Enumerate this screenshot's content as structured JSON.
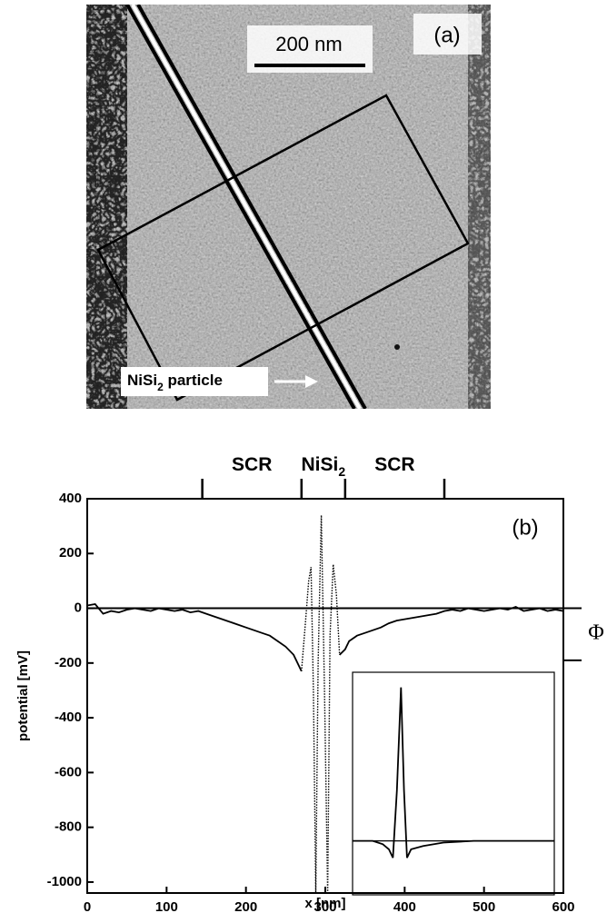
{
  "panel_a": {
    "scale_bar": "200 nm",
    "panel_label": "(a)",
    "arrow_label": {
      "text": "NiSi",
      "sub": "2",
      "rest": " particle"
    }
  },
  "chart_data": [
    {
      "type": "line",
      "panel_label": "(b)",
      "xlabel": "x [nm]",
      "ylabel": "potential [mV]",
      "xlim": [
        0,
        600
      ],
      "ylim": [
        -1040,
        400
      ],
      "xticks": [
        0,
        100,
        200,
        300,
        400,
        500,
        600
      ],
      "yticks": [
        -1000,
        -800,
        -600,
        -400,
        -200,
        0,
        200,
        400
      ],
      "hline": 0,
      "top_markers": [
        145,
        270,
        325,
        450
      ],
      "top_labels": [
        {
          "text": "SCR"
        },
        {
          "text": "NiSi",
          "sub": "2"
        },
        {
          "text": "SCR"
        }
      ],
      "phi_marks": [
        0,
        -190
      ],
      "phi_label": "Φ",
      "series": [
        {
          "color": "#000000",
          "style": "solid",
          "x": [
            0,
            10,
            20,
            30,
            40,
            50,
            60,
            70,
            80,
            90,
            100,
            110,
            120,
            130,
            140,
            150,
            160,
            170,
            180,
            190,
            200,
            210,
            220,
            230,
            240,
            250,
            260,
            270,
            295,
            318,
            325,
            330,
            340,
            350,
            360,
            370,
            380,
            390,
            400,
            410,
            420,
            430,
            440,
            450,
            460,
            470,
            480,
            490,
            500,
            510,
            520,
            530,
            540,
            550,
            560,
            570,
            580,
            590,
            600
          ],
          "values": [
            10,
            15,
            -20,
            -10,
            -15,
            -5,
            0,
            -5,
            -10,
            0,
            -5,
            -10,
            -5,
            -15,
            -10,
            -20,
            -30,
            -40,
            -50,
            -60,
            -70,
            -80,
            -90,
            -100,
            -120,
            -140,
            -170,
            -230,
            null,
            -170,
            -150,
            -120,
            -100,
            -90,
            -80,
            -70,
            -55,
            -45,
            -40,
            -35,
            -30,
            -25,
            -20,
            -10,
            -5,
            -10,
            0,
            -5,
            -10,
            -5,
            0,
            -5,
            5,
            -10,
            -5,
            0,
            -10,
            -5,
            -10
          ]
        },
        {
          "color": "#000000",
          "style": "dotted",
          "x": [
            270,
            275,
            279,
            282,
            285,
            288,
            291,
            295,
            299,
            303,
            306,
            310,
            314,
            318
          ],
          "values": [
            -230,
            -50,
            100,
            150,
            -300,
            -1040,
            -200,
            340,
            -300,
            -1040,
            -100,
            160,
            50,
            -170
          ]
        }
      ]
    },
    {
      "type": "line",
      "xlim": [
        0,
        100
      ],
      "ylim": [
        -0.32,
        1
      ],
      "hline": 0,
      "series": [
        {
          "color": "#000000",
          "style": "solid",
          "x": [
            0,
            10,
            15,
            18,
            20,
            22,
            24,
            25.5,
            27,
            29,
            35,
            45,
            60,
            100
          ],
          "values": [
            0,
            0,
            -0.02,
            -0.05,
            -0.1,
            0.3,
            0.91,
            0.3,
            -0.1,
            -0.05,
            -0.03,
            -0.01,
            0,
            0
          ]
        }
      ]
    }
  ]
}
